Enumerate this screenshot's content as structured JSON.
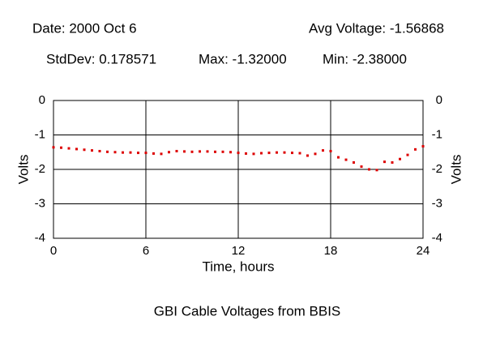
{
  "chart_data": {
    "type": "scatter",
    "title": "GBI Cable Voltages from BBIS",
    "annotations": [
      "Date: 2000 Oct 6",
      "Avg Voltage: -1.56868",
      "StdDev: 0.178571",
      "Max: -1.32000",
      "Min: -2.38000"
    ],
    "xlabel": "Time, hours",
    "ylabel": "Volts",
    "x": [
      0,
      0.5,
      1,
      1.5,
      2,
      2.5,
      3,
      3.5,
      4,
      4.5,
      5,
      5.5,
      6,
      6.5,
      7,
      7.5,
      8,
      8.5,
      9,
      9.5,
      10,
      10.5,
      11,
      11.5,
      12,
      12.5,
      13,
      13.5,
      14,
      14.5,
      15,
      15.5,
      16,
      16.5,
      17,
      17.5,
      18,
      18.5,
      19,
      19.5,
      20,
      20.5,
      21,
      21.5,
      22,
      22.5,
      23,
      23.5,
      24
    ],
    "values": [
      -1.36,
      -1.37,
      -1.39,
      -1.41,
      -1.43,
      -1.45,
      -1.47,
      -1.49,
      -1.5,
      -1.51,
      -1.51,
      -1.52,
      -1.52,
      -1.54,
      -1.55,
      -1.5,
      -1.47,
      -1.48,
      -1.49,
      -1.48,
      -1.48,
      -1.49,
      -1.49,
      -1.5,
      -1.52,
      -1.54,
      -1.55,
      -1.53,
      -1.52,
      -1.51,
      -1.51,
      -1.52,
      -1.53,
      -1.6,
      -1.55,
      -1.45,
      -1.47,
      -1.65,
      -1.72,
      -1.8,
      -1.92,
      -2.0,
      -2.02,
      -1.78,
      -1.8,
      -1.7,
      -1.58,
      -1.42,
      -1.33
    ],
    "color": "#dd0000",
    "xlim": [
      0,
      24
    ],
    "xticks": [
      0,
      6,
      12,
      18,
      24
    ],
    "ylim": [
      -4,
      0
    ],
    "yticks": [
      0,
      -1,
      -2,
      -3,
      -4
    ],
    "grid": true
  }
}
